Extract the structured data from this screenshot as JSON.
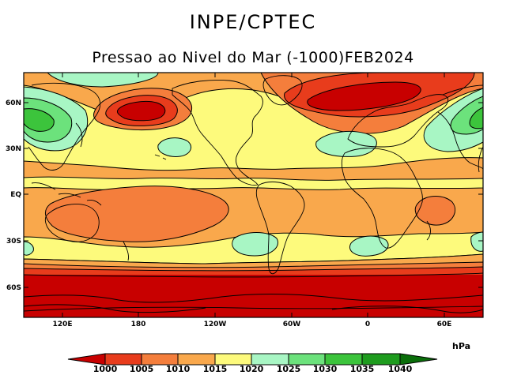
{
  "header": {
    "org": "INPE/CPTEC",
    "title": "Pressao ao Nivel do Mar (-1000)FEB2024"
  },
  "map": {
    "lat_ticks": [
      "60N",
      "30N",
      "EQ",
      "30S",
      "60S"
    ],
    "lon_ticks": [
      "120E",
      "180",
      "120W",
      "60W",
      "0",
      "60E"
    ],
    "palette": {
      "lt1000": "#c80000",
      "1000": "#e83c1c",
      "1005": "#f47e3c",
      "1010": "#f9a84c",
      "1015": "#fdfa7c",
      "1020": "#a8f6c4",
      "1025": "#6ce27c",
      "1030": "#3cc43c",
      "1035": "#1e9c1e",
      "1040": "#0a6e0a"
    }
  },
  "colorbar": {
    "unit": "hPa",
    "labels": [
      "1000",
      "1005",
      "1010",
      "1015",
      "1020",
      "1025",
      "1030",
      "1035",
      "1040"
    ]
  }
}
